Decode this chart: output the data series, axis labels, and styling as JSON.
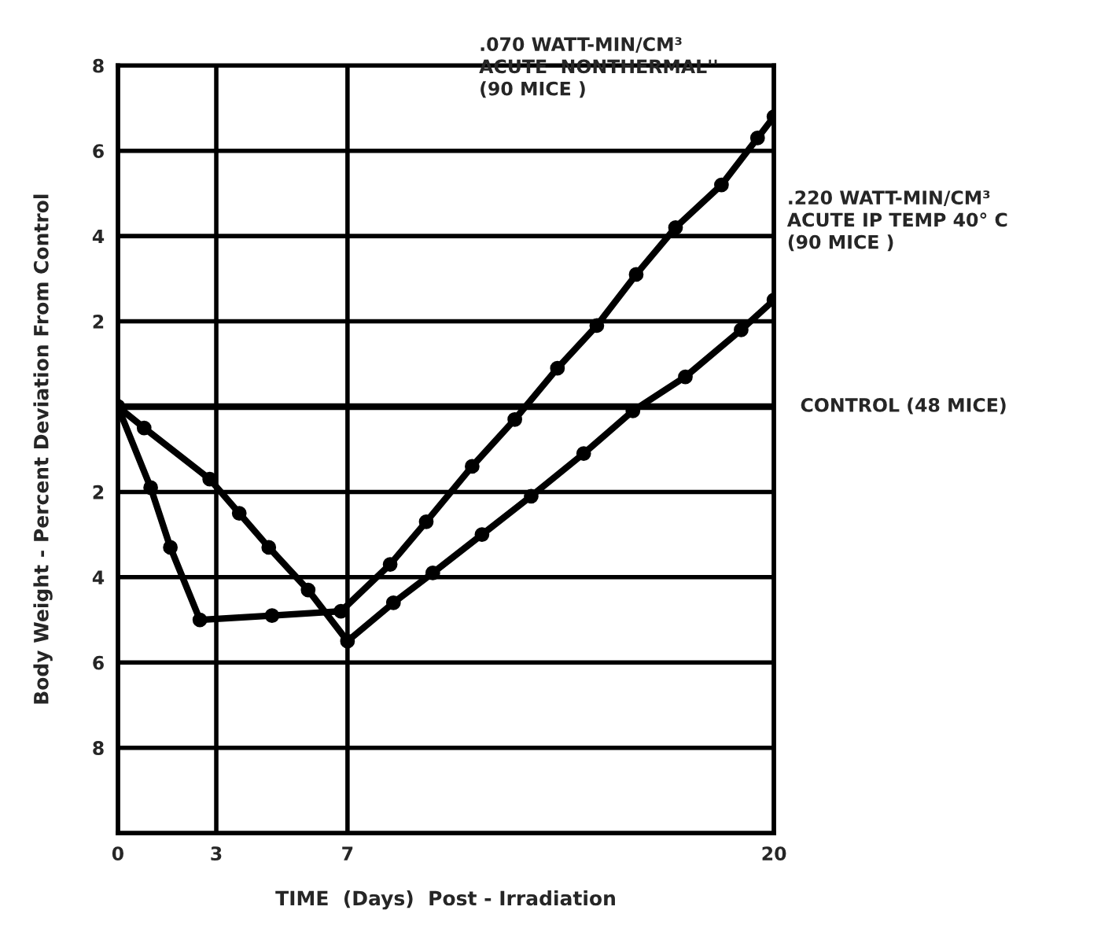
{
  "chart_data": {
    "type": "line",
    "xlabel": "TIME  (Days)  Post - Irradiation",
    "ylabel": "Body Weight - Percent Deviation From Control",
    "xlim": [
      0,
      20
    ],
    "xticks": [
      0,
      3,
      7,
      20
    ],
    "ylim": [
      -10,
      8
    ],
    "yticks": [
      8,
      6,
      4,
      2,
      {
        "value": -2,
        "label": "2"
      },
      {
        "value": -4,
        "label": "4"
      },
      {
        "value": -6,
        "label": "6"
      },
      {
        "value": -8,
        "label": "8"
      }
    ],
    "grid": true,
    "legend": false,
    "series": [
      {
        "name": ".070 WATT-MIN/CM³\nACUTE  NONTHERMAL''\n(90 MICE )",
        "color": "#000000",
        "marker": "circle",
        "x": [
          0,
          1,
          1.6,
          2.5,
          4.7,
          6.8,
          8.3,
          9.4,
          10.8,
          12.1,
          13.4,
          14.6,
          15.8,
          17,
          18.4,
          19.5,
          20
        ],
        "values": [
          0,
          -1.9,
          -3.3,
          -5,
          -4.9,
          -4.8,
          -3.7,
          -2.7,
          -1.4,
          -0.3,
          0.9,
          1.9,
          3.1,
          4.2,
          5.2,
          6.3,
          6.8
        ]
      },
      {
        "name": ".220 WATT-MIN/CM³\nACUTE IP TEMP 40° C\n(90 MICE )",
        "color": "#000000",
        "marker": "circle",
        "x": [
          0,
          0.8,
          2.8,
          3.7,
          4.6,
          5.8,
          7,
          8.4,
          9.6,
          11.1,
          12.6,
          14.2,
          15.7,
          17.3,
          19,
          20
        ],
        "values": [
          0,
          -0.5,
          -1.7,
          -2.5,
          -3.3,
          -4.3,
          -5.5,
          -4.6,
          -3.9,
          -3,
          -2.1,
          -1.1,
          -0.1,
          0.7,
          1.8,
          2.5
        ]
      },
      {
        "name": "CONTROL (48 MICE)",
        "color": "#000000",
        "marker": "none",
        "x": [
          0,
          20
        ],
        "values": [
          0,
          0
        ]
      }
    ]
  }
}
